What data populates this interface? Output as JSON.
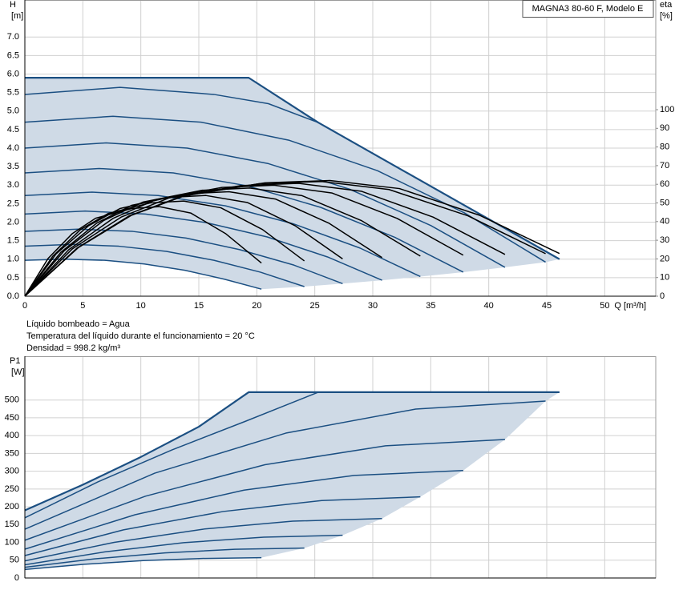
{
  "chart_data": [
    {
      "type": "line",
      "title": "MAGNA3 80-60 F, Modelo E",
      "xlabel": "Q [m³/h]",
      "ylabel": [
        "H",
        "[m]"
      ],
      "y2label": [
        "eta",
        "[%]"
      ],
      "xlim": [
        0,
        54.4
      ],
      "xticks": [
        0,
        5,
        10,
        15,
        20,
        25,
        30,
        35,
        40,
        45,
        50
      ],
      "ylim": [
        0,
        8
      ],
      "yticks": [
        {
          "value": 0,
          "label": "0.0"
        },
        0.5,
        {
          "value": 1,
          "label": "1.0"
        },
        1.5,
        {
          "value": 2,
          "label": "2.0"
        },
        2.5,
        {
          "value": 3,
          "label": "3.0"
        },
        3.5,
        {
          "value": 4,
          "label": "4.0"
        },
        4.5,
        {
          "value": 5,
          "label": "5.0"
        },
        5.5,
        {
          "value": 6,
          "label": "6.0"
        },
        6.5,
        {
          "value": 7,
          "label": "7.0"
        }
      ],
      "y2lim": [
        0,
        158.8
      ],
      "y2ticks": [
        0,
        10,
        20,
        30,
        40,
        50,
        60,
        70,
        80,
        90,
        100
      ],
      "grid": true,
      "fill_color": "#cfdae6",
      "series": [
        {
          "color": "#1b4f82",
          "x": [
            0,
            19.3,
            25.3,
            46.1
          ],
          "values": [
            5.9,
            5.9,
            4.69,
            1.0
          ]
        },
        {
          "color": "#1b4f82",
          "x": [
            0,
            8.2,
            16.3,
            21,
            25.3
          ],
          "values": [
            5.45,
            5.64,
            5.45,
            5.2,
            4.69
          ]
        },
        {
          "color": "#1b4f82",
          "x": [
            0,
            7.6,
            15.2,
            22.8,
            30.4,
            37.9,
            44.9
          ],
          "values": [
            4.7,
            4.86,
            4.7,
            4.21,
            3.39,
            2.25,
            0.92
          ]
        },
        {
          "color": "#1b4f82",
          "x": [
            0,
            7,
            14,
            21,
            28,
            35,
            41.4
          ],
          "values": [
            4.0,
            4.14,
            4.0,
            3.58,
            2.89,
            1.91,
            0.78
          ]
        },
        {
          "color": "#1b4f82",
          "x": [
            0,
            6.4,
            12.8,
            19.2,
            25.5,
            31.9,
            37.8
          ],
          "values": [
            3.33,
            3.45,
            3.33,
            2.98,
            2.4,
            1.59,
            0.65
          ]
        },
        {
          "color": "#1b4f82",
          "x": [
            0,
            5.8,
            11.5,
            17.3,
            23.1,
            28.9,
            34.1
          ],
          "values": [
            2.72,
            2.81,
            2.72,
            2.44,
            1.96,
            1.3,
            0.53
          ]
        },
        {
          "color": "#1b4f82",
          "x": [
            0,
            5.2,
            10.4,
            15.6,
            20.9,
            26.1,
            30.8
          ],
          "values": [
            2.22,
            2.3,
            2.22,
            1.99,
            1.6,
            1.06,
            0.43
          ]
        },
        {
          "color": "#1b4f82",
          "x": [
            0,
            4.6,
            9.3,
            13.9,
            18.5,
            23.2,
            27.4
          ],
          "values": [
            1.75,
            1.81,
            1.75,
            1.57,
            1.26,
            0.84,
            0.34
          ]
        },
        {
          "color": "#1b4f82",
          "x": [
            0,
            4.1,
            8.1,
            12.2,
            16.3,
            20.3,
            24.1
          ],
          "values": [
            1.35,
            1.4,
            1.35,
            1.21,
            0.97,
            0.65,
            0.26
          ]
        },
        {
          "color": "#1b4f82",
          "x": [
            0,
            3.4,
            6.9,
            10.3,
            13.8,
            17.2,
            20.4
          ],
          "values": [
            0.97,
            1.0,
            0.97,
            0.87,
            0.7,
            0.46,
            0.19
          ]
        },
        {
          "color": "#000000",
          "axis": "y2",
          "x": [
            0,
            2.0,
            4.1,
            6.1,
            9.2,
            11.6,
            14.3,
            17.3,
            20.4
          ],
          "values": [
            0,
            20.2,
            33.6,
            41.8,
            47.0,
            48,
            44.6,
            33.6,
            17.8
          ]
        },
        {
          "color": "#000000",
          "axis": "y2",
          "x": [
            0,
            2.4,
            4.8,
            7.2,
            10.8,
            13.7,
            16.9,
            20.5,
            24.1
          ],
          "values": [
            0,
            21.4,
            35.7,
            44.4,
            50.0,
            51,
            47.4,
            35.7,
            18.9
          ]
        },
        {
          "color": "#000000",
          "axis": "y2",
          "x": [
            0,
            2.7,
            5.5,
            8.2,
            12.3,
            15.6,
            19.2,
            23.3,
            27.4
          ],
          "values": [
            0,
            22.7,
            37.8,
            47.0,
            52.9,
            54,
            50.2,
            37.8,
            20.0
          ]
        },
        {
          "color": "#000000",
          "axis": "y2",
          "x": [
            0,
            3.1,
            6.2,
            9.2,
            13.9,
            17.6,
            21.6,
            26.2,
            30.8
          ],
          "values": [
            0,
            23.5,
            39.2,
            48.7,
            54.9,
            56,
            52.1,
            39.2,
            20.7
          ]
        },
        {
          "color": "#000000",
          "axis": "y2",
          "x": [
            0,
            3.4,
            6.8,
            10.2,
            15.3,
            19.4,
            23.9,
            29.0,
            34.1
          ],
          "values": [
            0,
            24.4,
            40.6,
            50.5,
            56.8,
            58,
            53.9,
            40.6,
            21.5
          ]
        },
        {
          "color": "#000000",
          "axis": "y2",
          "x": [
            0,
            3.8,
            7.6,
            11.3,
            17.0,
            21.5,
            26.5,
            32.1,
            37.8
          ],
          "values": [
            0,
            25.0,
            41.7,
            51.8,
            58.3,
            59.5,
            55.3,
            41.7,
            22.0
          ]
        },
        {
          "color": "#000000",
          "axis": "y2",
          "x": [
            0,
            4.1,
            8.3,
            12.4,
            18.6,
            23.6,
            29.0,
            35.2,
            41.4
          ],
          "values": [
            0,
            25.4,
            42.4,
            52.6,
            59.3,
            60.5,
            56.3,
            42.4,
            22.4
          ]
        },
        {
          "color": "#000000",
          "axis": "y2",
          "x": [
            0,
            4.5,
            9.0,
            13.5,
            20.2,
            25.6,
            31.4,
            38.2,
            44.9
          ],
          "values": [
            0,
            25.8,
            43.1,
            53.5,
            60.3,
            61.5,
            57.2,
            43.1,
            22.8
          ]
        },
        {
          "color": "#000000",
          "axis": "y2",
          "x": [
            0,
            4.6,
            9.2,
            13.8,
            20.7,
            26.3,
            32.3,
            39.2,
            46.1
          ],
          "values": [
            0,
            26.0,
            43.4,
            53.9,
            60.8,
            62,
            57.7,
            43.4,
            22.9
          ]
        }
      ]
    },
    {
      "type": "line",
      "ylabel": [
        "P1",
        "[W]"
      ],
      "xlim": [
        0,
        54.4
      ],
      "ylim": [
        0,
        623
      ],
      "yticks": [
        0,
        50,
        100,
        150,
        200,
        250,
        300,
        350,
        400,
        450,
        500
      ],
      "grid": true,
      "fill_color": "#cfdae6",
      "series": [
        {
          "color": "#1b4f82",
          "x": [
            0,
            5,
            10,
            15,
            19.3,
            46.1
          ],
          "values": [
            190,
            262,
            340,
            425,
            522,
            522
          ]
        },
        {
          "color": "#1b4f82",
          "x": [
            0,
            6.3,
            12.7,
            19,
            25.3
          ],
          "values": [
            169,
            270,
            360,
            440,
            522
          ]
        },
        {
          "color": "#1b4f82",
          "x": [
            0,
            11.2,
            22.5,
            33.7,
            44.9
          ],
          "values": [
            137,
            294.5,
            407,
            474.5,
            497
          ]
        },
        {
          "color": "#1b4f82",
          "x": [
            0,
            10.4,
            20.7,
            31.1,
            41.4
          ],
          "values": [
            106,
            229.8,
            318.3,
            371.3,
            389
          ]
        },
        {
          "color": "#1b4f82",
          "x": [
            0,
            9.5,
            18.9,
            28.4,
            37.8
          ],
          "values": [
            81,
            177.7,
            246.8,
            288.2,
            302
          ]
        },
        {
          "color": "#1b4f82",
          "x": [
            0,
            8.5,
            17.1,
            25.6,
            34.1
          ],
          "values": [
            63,
            135.2,
            186.8,
            217.7,
            228
          ]
        },
        {
          "color": "#1b4f82",
          "x": [
            0,
            7.7,
            15.4,
            23.1,
            30.8
          ],
          "values": [
            48,
            100.1,
            137.3,
            159.6,
            167
          ]
        },
        {
          "color": "#1b4f82",
          "x": [
            0,
            6.9,
            13.7,
            20.6,
            27.4
          ],
          "values": [
            37,
            73.3,
            99.3,
            114.8,
            120
          ]
        },
        {
          "color": "#1b4f82",
          "x": [
            0,
            6.0,
            12.1,
            18.1,
            24.1
          ],
          "values": [
            30,
            53.6,
            70.5,
            80.6,
            84
          ]
        },
        {
          "color": "#1b4f82",
          "x": [
            0,
            5.1,
            10.2,
            15.3,
            20.4
          ],
          "values": [
            24,
            38.4,
            48.8,
            54.9,
            57
          ]
        }
      ]
    }
  ],
  "notes": [
    "Líquido bombeado = Agua",
    "Temperatura del líquido durante el funcionamiento = 20 °C",
    "Densidad = 998.2 kg/m³"
  ]
}
